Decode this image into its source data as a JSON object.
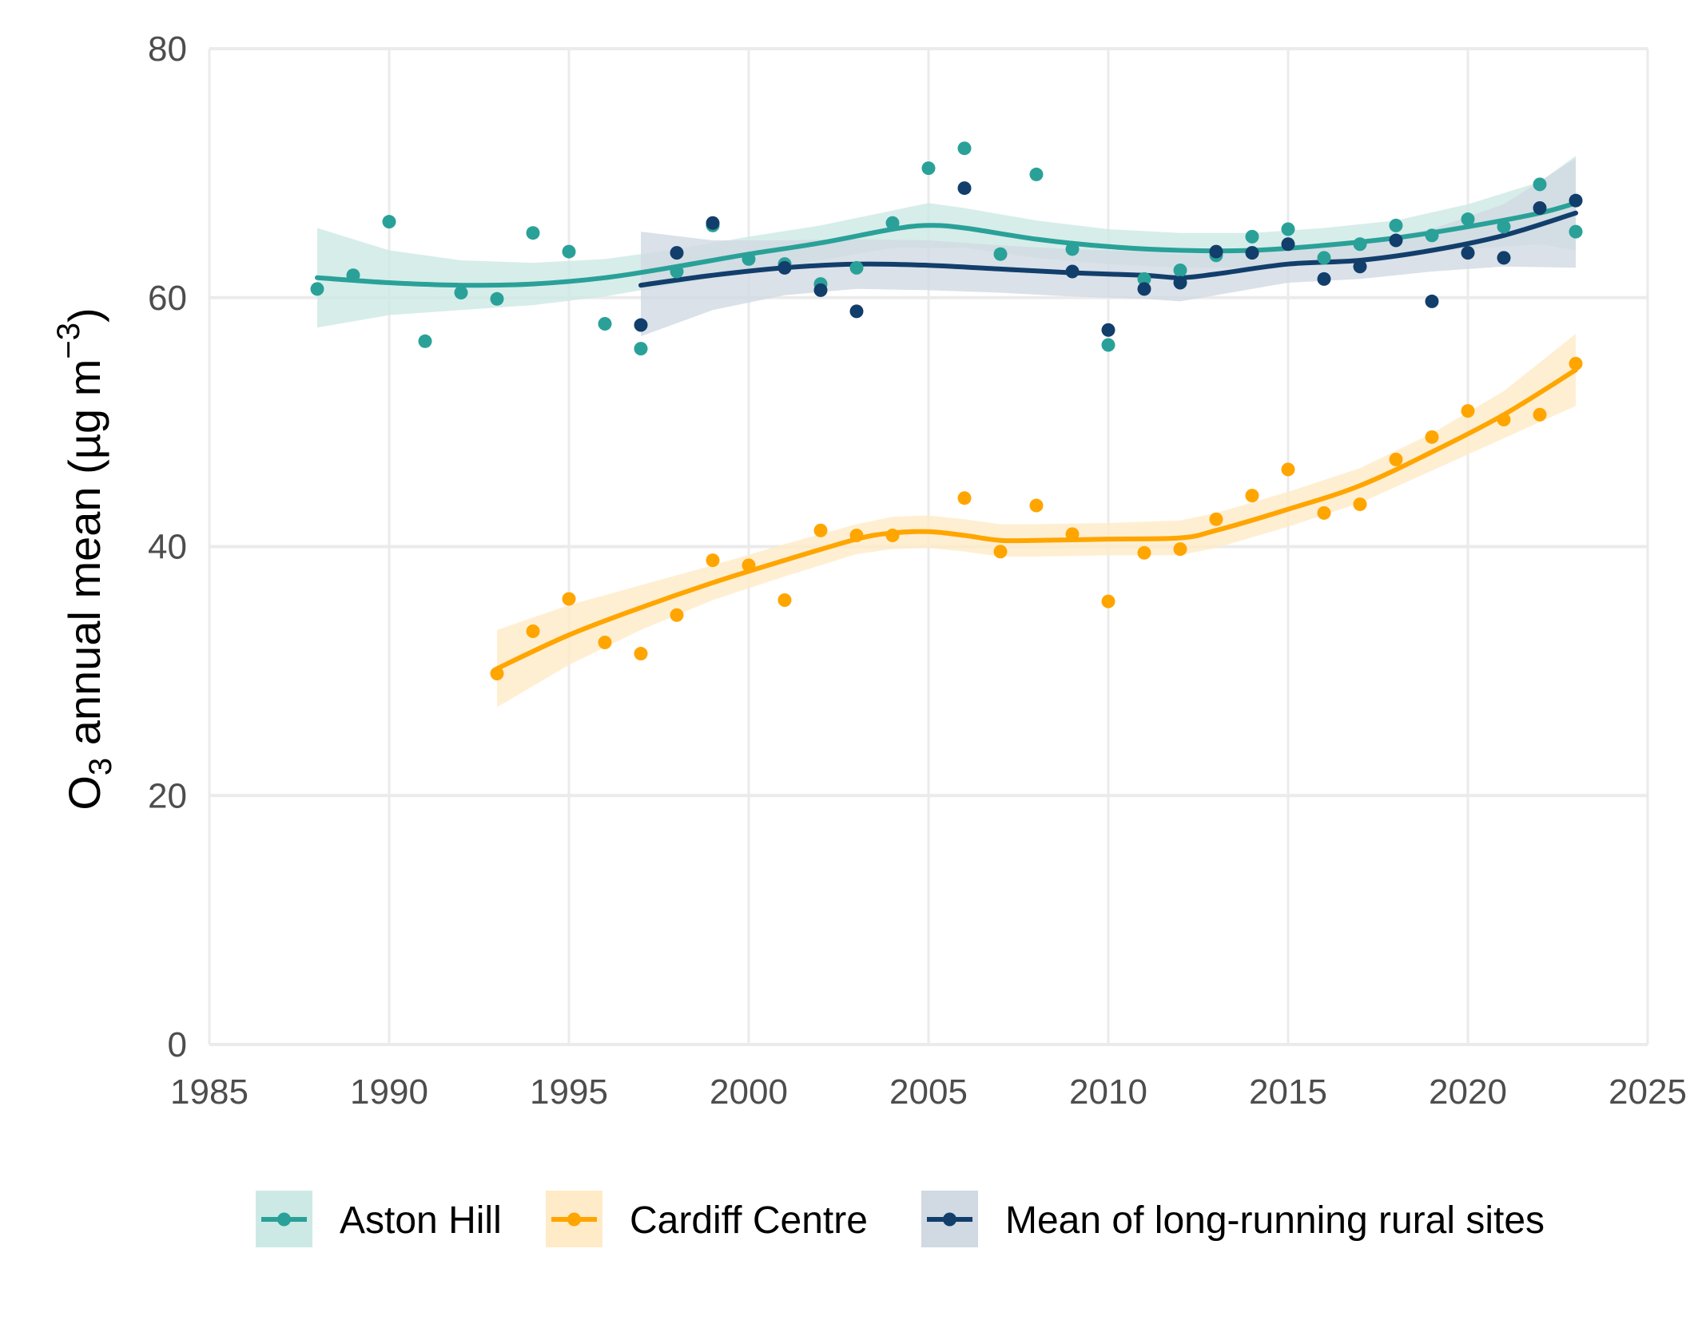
{
  "chart_data": {
    "type": "scatter",
    "ylabel_main": "O",
    "ylabel_sub": "3",
    "ylabel_rest": " annual mean (µg m",
    "ylabel_sup": "−3",
    "ylabel_close": ")",
    "xlim": [
      1985,
      2025
    ],
    "ylim": [
      0,
      80
    ],
    "xticks": [
      "1985",
      "1990",
      "1995",
      "2000",
      "2005",
      "2010",
      "2015",
      "2020",
      "2025"
    ],
    "yticks": [
      "0",
      "20",
      "40",
      "60",
      "80"
    ],
    "grid": true,
    "legend_position": "bottom",
    "series": [
      {
        "name": "Aston Hill",
        "color": "#2aa198",
        "band_color": "#cde9e5",
        "points": [
          [
            1988,
            60.7
          ],
          [
            1989,
            61.8
          ],
          [
            1990,
            66.1
          ],
          [
            1991,
            56.5
          ],
          [
            1992,
            60.4
          ],
          [
            1993,
            59.9
          ],
          [
            1994,
            65.2
          ],
          [
            1995,
            63.7
          ],
          [
            1996,
            57.9
          ],
          [
            1997,
            55.9
          ],
          [
            1998,
            62.1
          ],
          [
            1999,
            65.8
          ],
          [
            2000,
            63.1
          ],
          [
            2001,
            62.7
          ],
          [
            2002,
            61.1
          ],
          [
            2003,
            62.4
          ],
          [
            2004,
            66.0
          ],
          [
            2005,
            70.4
          ],
          [
            2006,
            72.0
          ],
          [
            2007,
            63.5
          ],
          [
            2008,
            69.9
          ],
          [
            2009,
            63.9
          ],
          [
            2010,
            56.2
          ],
          [
            2011,
            61.5
          ],
          [
            2012,
            62.2
          ],
          [
            2013,
            63.4
          ],
          [
            2014,
            64.9
          ],
          [
            2015,
            65.5
          ],
          [
            2016,
            63.2
          ],
          [
            2017,
            64.3
          ],
          [
            2018,
            65.8
          ],
          [
            2019,
            65.0
          ],
          [
            2020,
            66.3
          ],
          [
            2021,
            65.7
          ],
          [
            2022,
            69.1
          ],
          [
            2023,
            65.3
          ]
        ],
        "smooth": [
          [
            1988,
            61.6
          ],
          [
            1990,
            61.2
          ],
          [
            1992,
            61.0
          ],
          [
            1994,
            61.1
          ],
          [
            1996,
            61.6
          ],
          [
            1998,
            62.5
          ],
          [
            2000,
            63.5
          ],
          [
            2002,
            64.4
          ],
          [
            2004,
            65.5
          ],
          [
            2005,
            65.8
          ],
          [
            2006,
            65.6
          ],
          [
            2008,
            64.7
          ],
          [
            2010,
            64.1
          ],
          [
            2012,
            63.8
          ],
          [
            2014,
            63.8
          ],
          [
            2016,
            64.2
          ],
          [
            2018,
            64.8
          ],
          [
            2020,
            65.7
          ],
          [
            2022,
            66.8
          ],
          [
            2023,
            67.6
          ]
        ],
        "band_upper": [
          [
            1988,
            65.6
          ],
          [
            1990,
            63.8
          ],
          [
            1992,
            63.0
          ],
          [
            1994,
            62.8
          ],
          [
            1996,
            63.1
          ],
          [
            1998,
            63.9
          ],
          [
            2000,
            64.9
          ],
          [
            2002,
            65.8
          ],
          [
            2004,
            67.0
          ],
          [
            2005,
            67.6
          ],
          [
            2006,
            67.2
          ],
          [
            2008,
            66.2
          ],
          [
            2010,
            65.5
          ],
          [
            2012,
            65.2
          ],
          [
            2014,
            65.2
          ],
          [
            2016,
            65.6
          ],
          [
            2018,
            66.2
          ],
          [
            2020,
            67.5
          ],
          [
            2022,
            69.3
          ],
          [
            2023,
            71.4
          ]
        ],
        "band_lower": [
          [
            1988,
            57.6
          ],
          [
            1990,
            58.6
          ],
          [
            1992,
            59.0
          ],
          [
            1994,
            59.4
          ],
          [
            1996,
            60.1
          ],
          [
            1998,
            61.1
          ],
          [
            2000,
            62.1
          ],
          [
            2002,
            63.0
          ],
          [
            2004,
            64.0
          ],
          [
            2005,
            64.0
          ],
          [
            2006,
            64.0
          ],
          [
            2008,
            63.2
          ],
          [
            2010,
            62.7
          ],
          [
            2012,
            62.4
          ],
          [
            2014,
            62.4
          ],
          [
            2016,
            62.8
          ],
          [
            2018,
            63.4
          ],
          [
            2020,
            63.9
          ],
          [
            2022,
            64.3
          ],
          [
            2023,
            63.8
          ]
        ]
      },
      {
        "name": "Cardiff Centre",
        "color": "#ffa500",
        "band_color": "#ffebc7",
        "points": [
          [
            1993,
            29.8
          ],
          [
            1994,
            33.2
          ],
          [
            1995,
            35.8
          ],
          [
            1996,
            32.3
          ],
          [
            1997,
            31.4
          ],
          [
            1998,
            34.5
          ],
          [
            1999,
            38.9
          ],
          [
            2000,
            38.5
          ],
          [
            2001,
            35.7
          ],
          [
            2002,
            41.3
          ],
          [
            2003,
            40.9
          ],
          [
            2004,
            40.9
          ],
          [
            2006,
            43.9
          ],
          [
            2007,
            39.6
          ],
          [
            2008,
            43.3
          ],
          [
            2009,
            41.0
          ],
          [
            2010,
            35.6
          ],
          [
            2011,
            39.5
          ],
          [
            2012,
            39.8
          ],
          [
            2013,
            42.2
          ],
          [
            2014,
            44.1
          ],
          [
            2015,
            46.2
          ],
          [
            2016,
            42.7
          ],
          [
            2017,
            43.4
          ],
          [
            2018,
            47.0
          ],
          [
            2019,
            48.8
          ],
          [
            2020,
            50.9
          ],
          [
            2021,
            50.2
          ],
          [
            2022,
            50.6
          ],
          [
            2023,
            54.7
          ]
        ],
        "smooth": [
          [
            1993,
            30.2
          ],
          [
            1995,
            32.9
          ],
          [
            1997,
            35.1
          ],
          [
            1999,
            37.1
          ],
          [
            2001,
            38.9
          ],
          [
            2003,
            40.6
          ],
          [
            2004,
            41.1
          ],
          [
            2005,
            41.2
          ],
          [
            2006,
            40.9
          ],
          [
            2007,
            40.5
          ],
          [
            2008,
            40.5
          ],
          [
            2010,
            40.6
          ],
          [
            2012,
            40.7
          ],
          [
            2013,
            41.3
          ],
          [
            2015,
            43.0
          ],
          [
            2017,
            44.9
          ],
          [
            2019,
            47.6
          ],
          [
            2021,
            50.6
          ],
          [
            2023,
            54.2
          ]
        ],
        "band_upper": [
          [
            1993,
            33.3
          ],
          [
            1995,
            35.3
          ],
          [
            1997,
            36.9
          ],
          [
            1999,
            38.5
          ],
          [
            2001,
            40.2
          ],
          [
            2003,
            41.8
          ],
          [
            2004,
            42.4
          ],
          [
            2005,
            42.5
          ],
          [
            2006,
            42.2
          ],
          [
            2007,
            41.8
          ],
          [
            2008,
            41.8
          ],
          [
            2010,
            41.9
          ],
          [
            2012,
            42.1
          ],
          [
            2013,
            42.7
          ],
          [
            2015,
            44.4
          ],
          [
            2017,
            46.3
          ],
          [
            2019,
            49.1
          ],
          [
            2021,
            52.5
          ],
          [
            2023,
            57.1
          ]
        ],
        "band_lower": [
          [
            1993,
            27.1
          ],
          [
            1995,
            30.5
          ],
          [
            1997,
            33.3
          ],
          [
            1999,
            35.7
          ],
          [
            2001,
            37.6
          ],
          [
            2003,
            39.4
          ],
          [
            2004,
            39.8
          ],
          [
            2005,
            39.9
          ],
          [
            2006,
            39.6
          ],
          [
            2007,
            39.2
          ],
          [
            2008,
            39.2
          ],
          [
            2010,
            39.3
          ],
          [
            2012,
            39.3
          ],
          [
            2013,
            39.9
          ],
          [
            2015,
            41.6
          ],
          [
            2017,
            43.5
          ],
          [
            2019,
            46.1
          ],
          [
            2021,
            48.7
          ],
          [
            2023,
            51.3
          ]
        ]
      },
      {
        "name": "Mean of long-running rural sites",
        "color": "#123e6b",
        "band_color": "#d1d9e2",
        "points": [
          [
            1997,
            57.8
          ],
          [
            1998,
            63.6
          ],
          [
            1999,
            66.0
          ],
          [
            2001,
            62.4
          ],
          [
            2002,
            60.6
          ],
          [
            2003,
            58.9
          ],
          [
            2006,
            68.8
          ],
          [
            2009,
            62.1
          ],
          [
            2010,
            57.4
          ],
          [
            2011,
            60.7
          ],
          [
            2012,
            61.2
          ],
          [
            2013,
            63.7
          ],
          [
            2014,
            63.6
          ],
          [
            2015,
            64.3
          ],
          [
            2016,
            61.5
          ],
          [
            2017,
            62.5
          ],
          [
            2018,
            64.6
          ],
          [
            2019,
            59.7
          ],
          [
            2020,
            63.6
          ],
          [
            2021,
            63.2
          ],
          [
            2022,
            67.2
          ],
          [
            2023,
            67.8
          ]
        ],
        "smooth": [
          [
            1997,
            61.0
          ],
          [
            1999,
            61.8
          ],
          [
            2001,
            62.4
          ],
          [
            2003,
            62.7
          ],
          [
            2005,
            62.6
          ],
          [
            2007,
            62.3
          ],
          [
            2009,
            62.0
          ],
          [
            2011,
            61.8
          ],
          [
            2012,
            61.6
          ],
          [
            2013,
            61.9
          ],
          [
            2015,
            62.7
          ],
          [
            2017,
            63.0
          ],
          [
            2019,
            63.8
          ],
          [
            2021,
            65.0
          ],
          [
            2023,
            66.8
          ]
        ],
        "band_upper": [
          [
            1997,
            65.3
          ],
          [
            1999,
            64.6
          ],
          [
            2001,
            64.6
          ],
          [
            2003,
            64.7
          ],
          [
            2005,
            64.6
          ],
          [
            2007,
            64.2
          ],
          [
            2009,
            63.9
          ],
          [
            2011,
            63.7
          ],
          [
            2012,
            63.5
          ],
          [
            2013,
            63.6
          ],
          [
            2015,
            64.2
          ],
          [
            2017,
            64.5
          ],
          [
            2019,
            65.5
          ],
          [
            2021,
            67.5
          ],
          [
            2023,
            71.2
          ]
        ],
        "band_lower": [
          [
            1997,
            56.9
          ],
          [
            1999,
            59.0
          ],
          [
            2001,
            60.2
          ],
          [
            2003,
            60.7
          ],
          [
            2005,
            60.6
          ],
          [
            2007,
            60.4
          ],
          [
            2009,
            60.1
          ],
          [
            2011,
            59.9
          ],
          [
            2012,
            59.7
          ],
          [
            2013,
            60.2
          ],
          [
            2015,
            61.2
          ],
          [
            2017,
            61.5
          ],
          [
            2019,
            62.1
          ],
          [
            2021,
            62.5
          ],
          [
            2023,
            62.4
          ]
        ]
      }
    ]
  }
}
